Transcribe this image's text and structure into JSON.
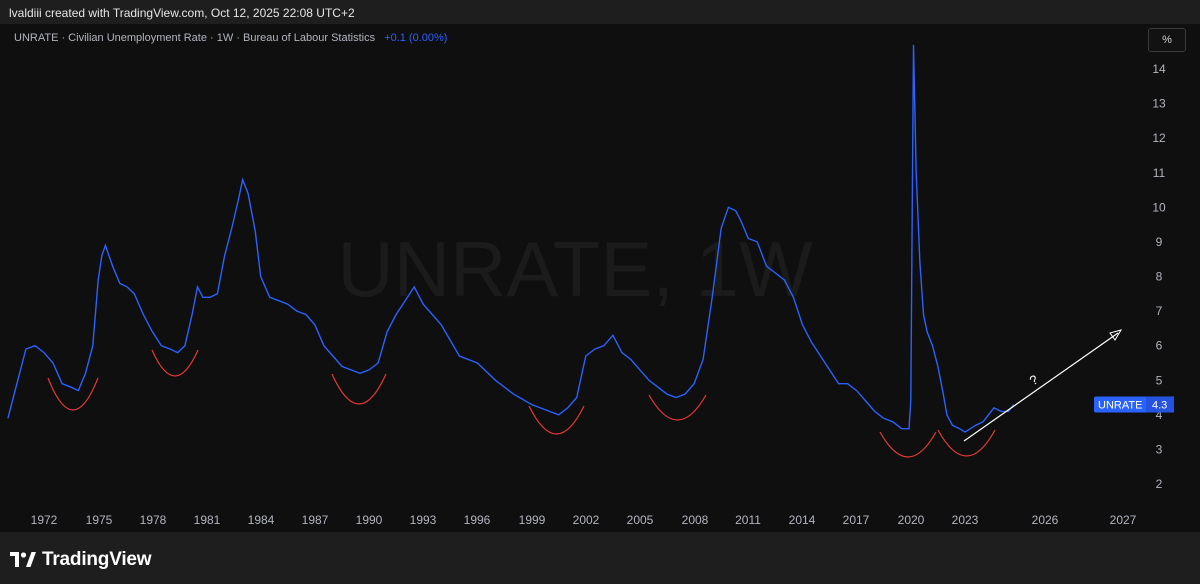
{
  "header": {
    "credit": "lvaldiii created with TradingView.com, Oct 12, 2025 22:08 UTC+2"
  },
  "legend": {
    "symbol_line": "UNRATE · Civilian Unemployment Rate · 1W · Bureau of Labour Statistics",
    "change": "+0.1 (0.00%)"
  },
  "unit_button": "%",
  "watermark": "UNRATE, 1W",
  "price_label": {
    "symbol": "UNRATE",
    "value": "4.3"
  },
  "annotation_text": "?",
  "footer": {
    "brand": "TradingView"
  },
  "colors": {
    "series": "#2962ff",
    "annotation_arc": "#e53935",
    "arrow": "#ffffff",
    "background": "#0f0f0f"
  },
  "chart_data": {
    "type": "line",
    "title": "UNRATE · Civilian Unemployment Rate · 1W · Bureau of Labour Statistics",
    "xlabel": "",
    "ylabel": "",
    "ylim": [
      1.5,
      15.2
    ],
    "xlim": [
      1970.0,
      2028.0
    ],
    "x_ticks": [
      "1972",
      "1975",
      "1978",
      "1981",
      "1984",
      "1987",
      "1990",
      "1993",
      "1996",
      "1999",
      "2002",
      "2005",
      "2008",
      "2011",
      "2014",
      "2017",
      "2020",
      "2023",
      "2026",
      "2027"
    ],
    "y_ticks": [
      "14",
      "13",
      "12",
      "11",
      "10",
      "9",
      "8",
      "7",
      "6",
      "5",
      "4",
      "3",
      "2"
    ],
    "grid": false,
    "series": [
      {
        "name": "UNRATE",
        "x": [
          1970.0,
          1970.4,
          1970.8,
          1971.0,
          1971.5,
          1972.0,
          1972.5,
          1973.0,
          1973.5,
          1973.9,
          1974.3,
          1974.7,
          1975.0,
          1975.2,
          1975.4,
          1975.8,
          1976.2,
          1976.6,
          1977.0,
          1977.5,
          1978.0,
          1978.5,
          1979.0,
          1979.4,
          1979.8,
          1980.2,
          1980.5,
          1980.8,
          1981.2,
          1981.6,
          1982.0,
          1982.4,
          1982.8,
          1983.0,
          1983.3,
          1983.7,
          1984.0,
          1984.5,
          1985.0,
          1985.5,
          1986.0,
          1986.5,
          1987.0,
          1987.5,
          1988.0,
          1988.5,
          1989.0,
          1989.5,
          1990.0,
          1990.5,
          1991.0,
          1991.5,
          1992.0,
          1992.5,
          1993.0,
          1993.5,
          1994.0,
          1995.0,
          1996.0,
          1997.0,
          1998.0,
          1999.0,
          2000.0,
          2000.5,
          2001.0,
          2001.5,
          2002.0,
          2002.5,
          2003.0,
          2003.5,
          2004.0,
          2004.5,
          2005.0,
          2005.5,
          2006.0,
          2006.5,
          2007.0,
          2007.5,
          2008.0,
          2008.5,
          2009.0,
          2009.5,
          2009.9,
          2010.3,
          2010.6,
          2011.0,
          2011.5,
          2012.0,
          2012.5,
          2013.0,
          2013.5,
          2014.0,
          2014.5,
          2015.0,
          2015.5,
          2016.0,
          2016.5,
          2017.0,
          2017.5,
          2018.0,
          2018.5,
          2019.0,
          2019.5,
          2019.9,
          2020.0,
          2020.15,
          2020.3,
          2020.5,
          2020.7,
          2020.9,
          2021.2,
          2021.5,
          2021.8,
          2022.0,
          2022.3,
          2022.7,
          2023.0,
          2023.3,
          2023.6,
          2024.0,
          2024.3,
          2024.6,
          2025.0,
          2025.4,
          2025.7
        ],
        "values": [
          3.9,
          4.7,
          5.5,
          5.9,
          6.0,
          5.8,
          5.5,
          4.9,
          4.8,
          4.7,
          5.2,
          6.0,
          7.9,
          8.6,
          8.9,
          8.3,
          7.8,
          7.7,
          7.5,
          6.9,
          6.4,
          6.0,
          5.9,
          5.8,
          6.0,
          6.9,
          7.7,
          7.4,
          7.4,
          7.5,
          8.6,
          9.4,
          10.3,
          10.8,
          10.4,
          9.3,
          8.0,
          7.4,
          7.3,
          7.2,
          7.0,
          6.9,
          6.6,
          6.0,
          5.7,
          5.4,
          5.3,
          5.2,
          5.3,
          5.5,
          6.4,
          6.9,
          7.3,
          7.7,
          7.2,
          6.9,
          6.6,
          5.7,
          5.5,
          5.0,
          4.6,
          4.3,
          4.1,
          4.0,
          4.2,
          4.5,
          5.7,
          5.9,
          6.0,
          6.3,
          5.8,
          5.6,
          5.3,
          5.0,
          4.8,
          4.6,
          4.5,
          4.6,
          4.9,
          5.6,
          7.4,
          9.4,
          10.0,
          9.9,
          9.6,
          9.1,
          9.0,
          8.3,
          8.1,
          7.9,
          7.4,
          6.6,
          6.1,
          5.7,
          5.3,
          4.9,
          4.9,
          4.7,
          4.4,
          4.1,
          3.9,
          3.8,
          3.6,
          3.6,
          4.4,
          14.7,
          11.0,
          8.4,
          6.9,
          6.4,
          6.0,
          5.4,
          4.6,
          4.0,
          3.7,
          3.6,
          3.5,
          3.6,
          3.7,
          3.8,
          4.0,
          4.2,
          4.1,
          4.1,
          4.3
        ]
      }
    ],
    "last_value": 4.3,
    "annotations": {
      "trough_arcs_at_years": [
        1973.8,
        1979.6,
        1989.6,
        2000.6,
        2006.6,
        2019.6,
        2023.5
      ],
      "arrow": {
        "from": [
          2023.0,
          3.2
        ],
        "to": [
          2029.0,
          6.5
        ]
      },
      "question_mark": {
        "x": 2025.2,
        "y": 5.0
      }
    }
  }
}
